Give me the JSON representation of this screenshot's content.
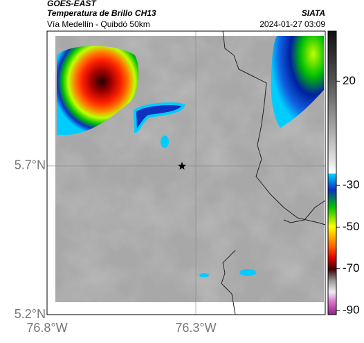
{
  "header": {
    "source": "GOES-EAST",
    "title": "Temperatura de Brillo CH13",
    "subtitle": "Vía Medellín - Quibdó 50km",
    "credit": "SIATA",
    "timestamp": "2024-01-27 03:09"
  },
  "map": {
    "xlim": [
      -76.8,
      -75.865
    ],
    "ylim": [
      5.2,
      6.153
    ],
    "xticks": [
      {
        "value": -76.8,
        "label": "76.8°W"
      },
      {
        "value": -76.3,
        "label": "76.3°W"
      }
    ],
    "yticks": [
      {
        "value": 5.2,
        "label": "5.2°N"
      },
      {
        "value": 5.7,
        "label": "5.7°N"
      }
    ],
    "grid": true
  },
  "colorbar": {
    "clim": [
      -92,
      44
    ],
    "ticks": [
      20,
      -30,
      -50,
      -70,
      -90
    ]
  }
}
